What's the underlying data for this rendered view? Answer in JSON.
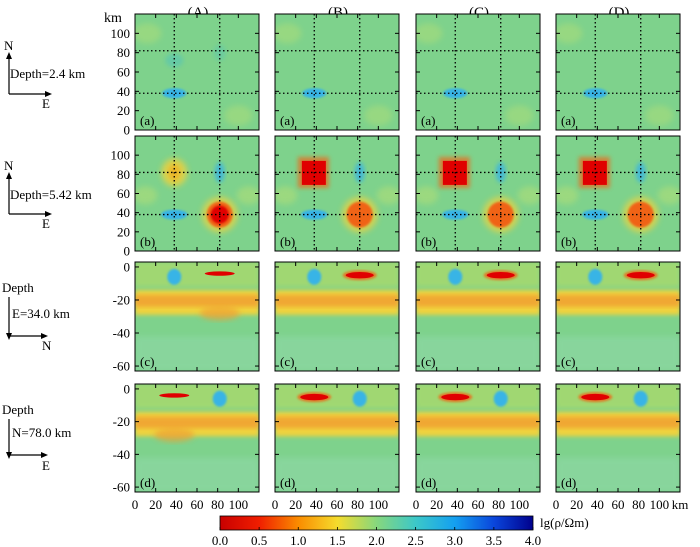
{
  "figure": {
    "column_labels": [
      "(A)",
      "(B)",
      "(C)",
      "(D)"
    ],
    "unit_km": "km",
    "x_axis_unit": "km",
    "colorbar_label": "lg(ρ/Ωm)",
    "colorbar_ticks": [
      "0.0",
      "0.5",
      "1.0",
      "1.5",
      "2.0",
      "2.5",
      "3.0",
      "3.5",
      "4.0"
    ],
    "colorbar_range": [
      0.0,
      4.0
    ],
    "colors": {
      "background": "#7ED28C",
      "red": "#E00000",
      "orange": "#F06418",
      "yellow": "#F0D23C",
      "cyan": "#37B4E6",
      "blue": "#1E50D2",
      "frame": "#000000"
    }
  },
  "rows": [
    {
      "key": "a",
      "panel_label": "(a)",
      "depth_label": "Depth=2.4 km",
      "axis_labels": [
        "N",
        "E"
      ],
      "y_ticks": [
        "0",
        "20",
        "40",
        "60",
        "80",
        "100"
      ],
      "y_range": [
        0,
        120
      ],
      "x_range": [
        0,
        120
      ]
    },
    {
      "key": "b",
      "panel_label": "(b)",
      "depth_label": "Depth=5.42 km",
      "axis_labels": [
        "N",
        "E"
      ],
      "y_ticks": [
        "0",
        "20",
        "40",
        "60",
        "80",
        "100"
      ],
      "y_range": [
        0,
        120
      ],
      "x_range": [
        0,
        120
      ]
    },
    {
      "key": "c",
      "panel_label": "(c)",
      "depth_label": "E=34.0 km",
      "axis_labels": [
        "Depth",
        "N"
      ],
      "y_ticks": [
        "0",
        "-20",
        "-40",
        "-60"
      ],
      "y_range": [
        -63,
        3
      ],
      "x_range": [
        0,
        120
      ]
    },
    {
      "key": "d",
      "panel_label": "(d)",
      "depth_label": "N=78.0 km",
      "axis_labels": [
        "Depth",
        "E"
      ],
      "y_ticks": [
        "0",
        "-20",
        "-40",
        "-60"
      ],
      "y_range": [
        -63,
        3
      ],
      "x_range": [
        0,
        120
      ]
    }
  ],
  "x_ticks": [
    "0",
    "20",
    "40",
    "60",
    "80",
    "100"
  ]
}
